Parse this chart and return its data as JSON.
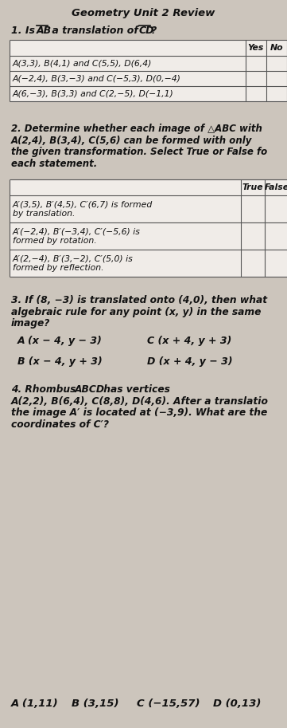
{
  "title": "Geometry Unit 2 Review",
  "bg_color": "#ccc5bc",
  "text_color": "#111111",
  "table1_rows": [
    "A(3,3), B(4,1) and C(5,5), D(6,4)",
    "A(−2,4), B(3,−3) and C(−5,3), D(0,−4)",
    "A(6,−3), B(3,3) and C(2,−5), D(−1,1)"
  ],
  "table1_header_cols": [
    "Yes",
    "No"
  ],
  "table2_rows": [
    "A′(3,5), B′(4,5), C′(6,7) is formed\nby translation.",
    "A′(−2,4), B′(−3,4), C′(−5,6) is\nformed by rotation.",
    "A′(2,−4), B′(3,−2), C′(5,0) is\nformed by reflection."
  ],
  "table2_header_cols": [
    "True",
    "False"
  ],
  "q2_line1": "2. Determine whether each image of △ABC with",
  "q2_line2": "A(2,4), B(3,4), C(5,6) can be formed with only",
  "q2_line3": "the given transformation. Select True or False fo",
  "q2_line4": "each statement.",
  "q3_line1": "3. If (8, −3) is translated onto (4,0), then what",
  "q3_line2": "algebraic rule for any point (x, y) in the same",
  "q3_line3": "image?",
  "q3_A": "A (x − 4, y − 3)",
  "q3_B": "B (x − 4, y + 3)",
  "q3_C": "C (x + 4, y + 3)",
  "q3_D": "D (x + 4, y − 3)",
  "q4_line1": "4. Rhombus ABCD has vertices",
  "q4_line1b_bold": "ABCD",
  "q4_line2": "A(2,2), B(6,4), C(8,8), D(4,6). After a translatio",
  "q4_line3": "the image A′ is located at (−3,9). What are the",
  "q4_line4": "coordinates of C′?",
  "q4_opts_A": "A (1,11)",
  "q4_opts_B": "B (3,15)",
  "q4_opts_C": "C (−15,57)",
  "q4_opts_D": "D (0,13)"
}
